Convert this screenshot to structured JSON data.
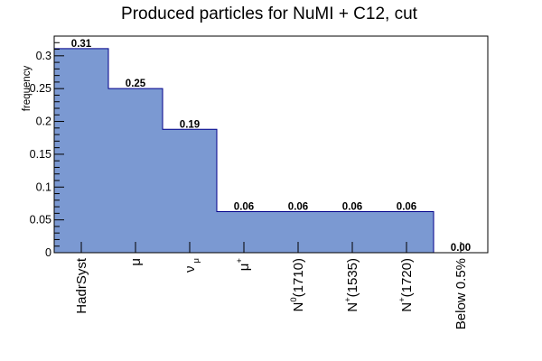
{
  "chart_data": {
    "type": "bar",
    "title": "Produced particles for NuMI + C12, cut",
    "xlabel": "",
    "ylabel": "frequency",
    "ylim": [
      0,
      0.33
    ],
    "yticks": [
      "0",
      "0.05",
      "0.1",
      "0.15",
      "0.2",
      "0.25",
      "0.3"
    ],
    "ytick_values": [
      0,
      0.05,
      0.1,
      0.15,
      0.2,
      0.25,
      0.3
    ],
    "categories": [
      {
        "base": "HadrSyst",
        "sup": "",
        "sub": "",
        "tail": ""
      },
      {
        "base": "μ",
        "sup": "",
        "sub": "",
        "tail": ""
      },
      {
        "base": "ν",
        "sup": "",
        "sub": "μ",
        "tail": ""
      },
      {
        "base": "μ",
        "sup": "+",
        "sub": "",
        "tail": ""
      },
      {
        "base": "N",
        "sup": "0",
        "sub": "",
        "tail": "(1710)"
      },
      {
        "base": "N",
        "sup": "+",
        "sub": "",
        "tail": "(1535)"
      },
      {
        "base": "N",
        "sup": "+",
        "sub": "",
        "tail": "(1720)"
      },
      {
        "base": "Below 0.5%",
        "sup": "",
        "sub": "",
        "tail": ""
      }
    ],
    "values": [
      0.311,
      0.25,
      0.188,
      0.0625,
      0.0625,
      0.0625,
      0.0625,
      0.0
    ],
    "value_labels": [
      "0.31",
      "0.25",
      "0.19",
      "0.06",
      "0.06",
      "0.06",
      "0.06",
      "0.00"
    ],
    "fill_color": "#7b99d2",
    "line_color": "#00008b",
    "grid": false,
    "legend": "none"
  }
}
